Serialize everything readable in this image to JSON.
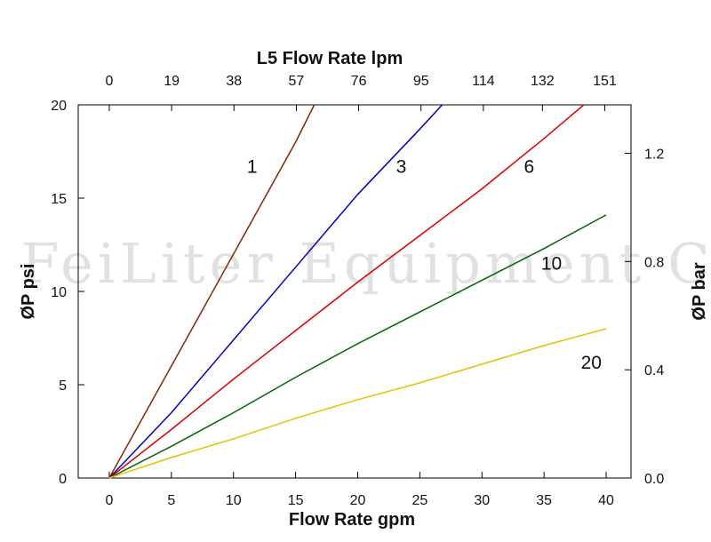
{
  "watermark": "g FeiLiter Equipment Co",
  "chart_data": {
    "type": "line",
    "title": "L5 Flow Rate lpm",
    "xlabel": "Flow Rate gpm",
    "ylabel": "ØP psi",
    "y2label": "ØP bar",
    "xlim": [
      -2.5,
      42
    ],
    "ylim": [
      0,
      20
    ],
    "x_ticks": [
      0,
      5,
      10,
      15,
      20,
      25,
      30,
      35,
      40
    ],
    "y_ticks": [
      0,
      5,
      10,
      15,
      20
    ],
    "top_axis": {
      "unit": "lpm",
      "ticks": [
        {
          "value": 0,
          "label": "0"
        },
        {
          "value": 19,
          "label": "19"
        },
        {
          "value": 38,
          "label": "38"
        },
        {
          "value": 57,
          "label": "57"
        },
        {
          "value": 76,
          "label": "76"
        },
        {
          "value": 95,
          "label": "95"
        },
        {
          "value": 114,
          "label": "114"
        },
        {
          "value": 132,
          "label": "132"
        },
        {
          "value": 151,
          "label": "151"
        }
      ]
    },
    "right_axis": {
      "unit": "bar",
      "ticks": [
        {
          "value": 0,
          "label": "0.0"
        },
        {
          "value": 0.4,
          "label": "0.4"
        },
        {
          "value": 0.8,
          "label": "0.8"
        },
        {
          "value": 1.2,
          "label": "1.2"
        }
      ]
    },
    "series": [
      {
        "name": "1",
        "color": "#8b2500",
        "x": [
          0,
          5,
          10,
          15,
          16.5
        ],
        "y": [
          0,
          6,
          12,
          18,
          20
        ]
      },
      {
        "name": "3",
        "color": "#0000cc",
        "x": [
          0,
          5,
          10,
          15,
          20,
          25,
          26.8
        ],
        "y": [
          0,
          3.5,
          7.4,
          11.3,
          15.2,
          18.7,
          20
        ]
      },
      {
        "name": "6",
        "color": "#dd0000",
        "x": [
          0,
          5,
          10,
          15,
          20,
          25,
          30,
          35,
          38.2
        ],
        "y": [
          0,
          2.6,
          5.3,
          7.9,
          10.5,
          13.0,
          15.5,
          18.2,
          20
        ]
      },
      {
        "name": "10",
        "color": "#006600",
        "x": [
          0,
          5,
          10,
          15,
          20,
          25,
          30,
          35,
          40
        ],
        "y": [
          0,
          1.7,
          3.5,
          5.4,
          7.2,
          8.9,
          10.6,
          12.3,
          14.1
        ]
      },
      {
        "name": "20",
        "color": "#e6c200",
        "x": [
          0,
          5,
          10,
          15,
          20,
          25,
          30,
          35,
          40
        ],
        "y": [
          0,
          1.1,
          2.1,
          3.2,
          4.2,
          5.1,
          6.1,
          7.1,
          8.0
        ]
      }
    ],
    "series_labels": [
      {
        "text": "1",
        "x": 11.5,
        "y": 16.7
      },
      {
        "text": "3",
        "x": 23.5,
        "y": 16.7
      },
      {
        "text": "6",
        "x": 33.8,
        "y": 16.7
      },
      {
        "text": "10",
        "x": 35.6,
        "y": 11.5
      },
      {
        "text": "20",
        "x": 38.8,
        "y": 6.2
      }
    ],
    "grid": false
  }
}
